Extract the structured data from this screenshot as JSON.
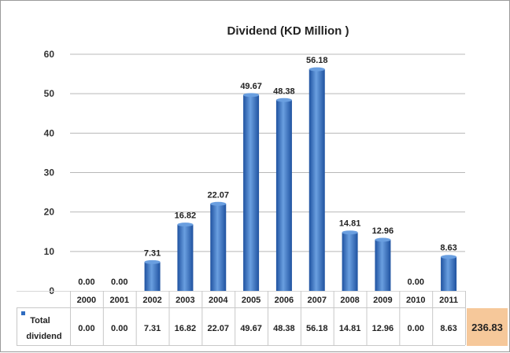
{
  "chart_data": {
    "type": "bar",
    "title": "Dividend (KD Million )",
    "categories": [
      "2000",
      "2001",
      "2002",
      "2003",
      "2004",
      "2005",
      "2006",
      "2007",
      "2008",
      "2009",
      "2010",
      "2011"
    ],
    "series": [
      {
        "name": "Total dividend",
        "values": [
          0.0,
          0.0,
          7.31,
          16.82,
          22.07,
          49.67,
          48.38,
          56.18,
          14.81,
          12.96,
          0.0,
          8.63
        ],
        "labels": [
          "0.00",
          "0.00",
          "7.31",
          "16.82",
          "22.07",
          "49.67",
          "48.38",
          "56.18",
          "14.81",
          "12.96",
          "0.00",
          "8.63"
        ]
      }
    ],
    "ylim": [
      0,
      60
    ],
    "yticks": [
      "0",
      "10",
      "20",
      "30",
      "40",
      "50",
      "60"
    ],
    "grid": true,
    "data_table": true,
    "total": "236.83",
    "colors": {
      "bar": "#2f6cc0",
      "bar_light": "#6a9fe0",
      "grid": "#b8b8b8",
      "total_fill": "#f6c89a",
      "legend_marker": "#2f6cc0"
    }
  },
  "legend": {
    "line1": "Total",
    "line2": "dividend"
  }
}
